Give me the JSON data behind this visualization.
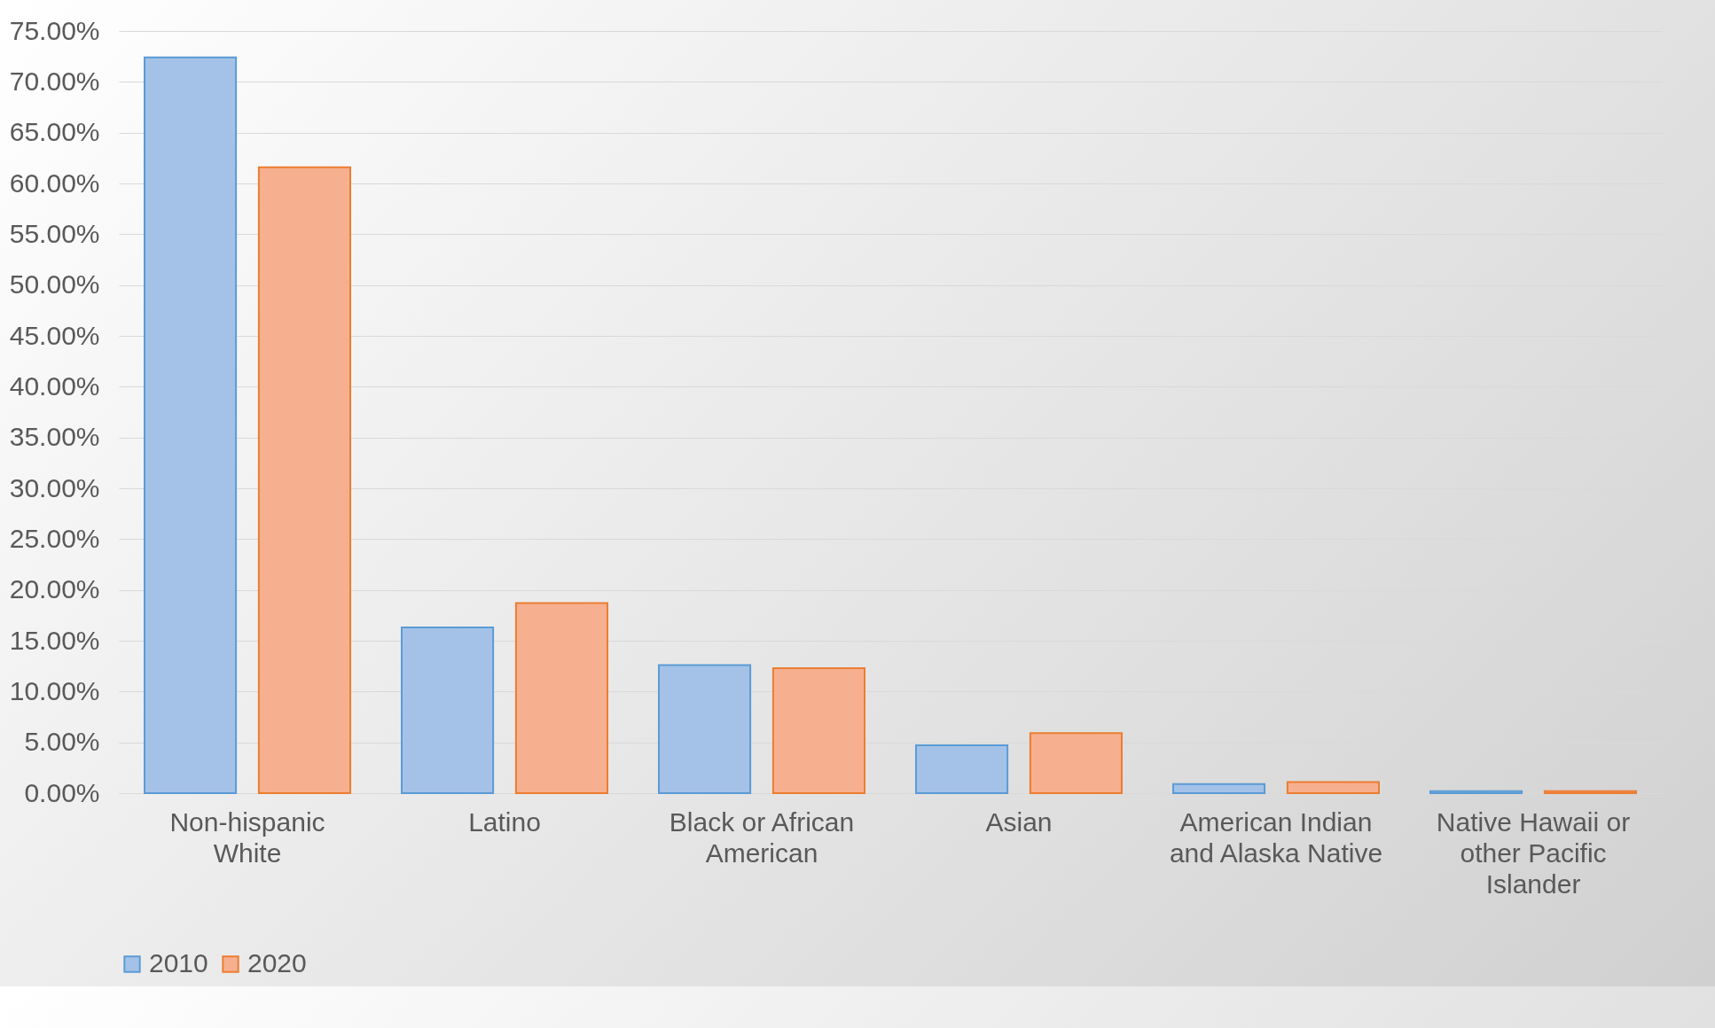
{
  "chart_data": {
    "type": "bar",
    "categories": [
      "Non-hispanic White",
      "Latino",
      "Black or African American",
      "Asian",
      "American Indian and Alaska Native",
      "Native Hawaii or other Pacific Islander"
    ],
    "series": [
      {
        "name": "2010",
        "color": "#a4c2e8",
        "values": [
          72.4,
          16.3,
          12.6,
          4.7,
          0.9,
          0.2
        ]
      },
      {
        "name": "2020",
        "color": "#f6b090",
        "values": [
          61.6,
          18.7,
          12.3,
          5.9,
          1.1,
          0.2
        ]
      }
    ],
    "ylim": [
      0,
      75
    ],
    "yticks": [
      {
        "value": 0,
        "label": "0.00%"
      },
      {
        "value": 5,
        "label": "5.00%"
      },
      {
        "value": 10,
        "label": "10.00%"
      },
      {
        "value": 15,
        "label": "15.00%"
      },
      {
        "value": 20,
        "label": "20.00%"
      },
      {
        "value": 25,
        "label": "25.00%"
      },
      {
        "value": 30,
        "label": "30.00%"
      },
      {
        "value": 35,
        "label": "35.00%"
      },
      {
        "value": 40,
        "label": "40.00%"
      },
      {
        "value": 45,
        "label": "45.00%"
      },
      {
        "value": 50,
        "label": "50.00%"
      },
      {
        "value": 55,
        "label": "55.00%"
      },
      {
        "value": 60,
        "label": "60.00%"
      },
      {
        "value": 65,
        "label": "65.00%"
      },
      {
        "value": 70,
        "label": "70.00%"
      },
      {
        "value": 75,
        "label": "75.00%"
      }
    ],
    "grid": "y",
    "legend": "bottom"
  }
}
